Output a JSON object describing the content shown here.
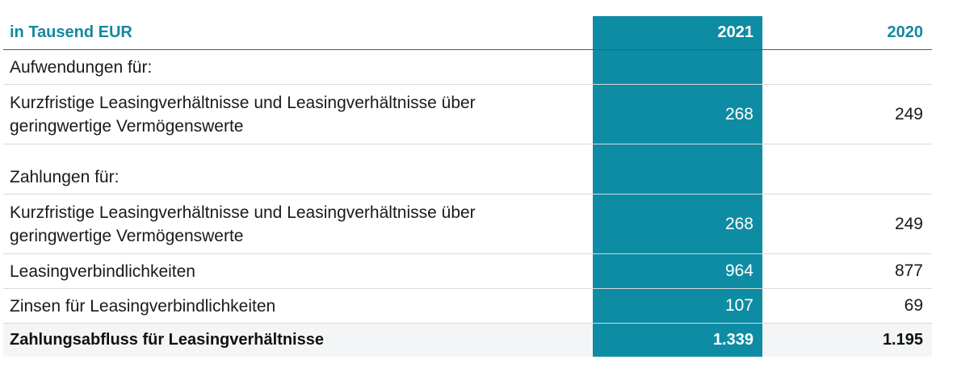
{
  "header": {
    "label": "in Tausend EUR",
    "col2021": "2021",
    "col2020": "2020"
  },
  "rows": [
    {
      "label": "Aufwendungen für:",
      "v2021": "",
      "v2020": ""
    },
    {
      "label_line1": "Kurzfristige Leasingverhältnisse und Leasingverhältnisse über",
      "label_line2": "geringwertige Vermögenswerte",
      "v2021": "268",
      "v2020": "249"
    },
    {
      "label": "Zahlungen für:",
      "v2021": "",
      "v2020": ""
    },
    {
      "label_line1": "Kurzfristige Leasingverhältnisse und Leasingverhältnisse über",
      "label_line2": "geringwertige Vermögenswerte",
      "v2021": "268",
      "v2020": "249"
    },
    {
      "label": "Leasingverbindlichkeiten",
      "v2021": "964",
      "v2020": "877"
    },
    {
      "label": "Zinsen für Leasingverbindlichkeiten",
      "v2021": "107",
      "v2020": "69"
    }
  ],
  "total": {
    "label": "Zahlungsabfluss für Leasingverhältnisse",
    "v2021": "1.339",
    "v2020": "1.195"
  },
  "colors": {
    "accent": "#0e8ca3",
    "header_text": "#14889f",
    "total_bg": "#f3f5f6"
  }
}
